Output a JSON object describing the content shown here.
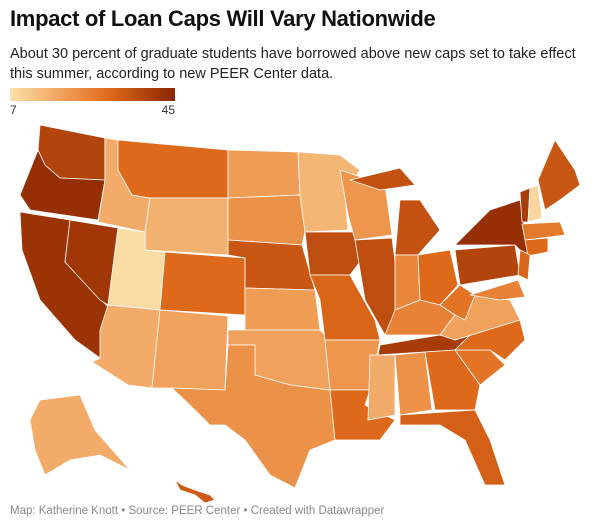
{
  "title": "Impact of Loan Caps Will Vary Nationwide",
  "subtitle": "About 30 percent of graduate students have borrowed above new caps set to take effect this summer, according to new PEER Center data.",
  "legend": {
    "min": "7",
    "max": "45",
    "min_color": "#fce0ab",
    "max_color": "#8b2500"
  },
  "footer": "Map: Katherine Knott • Source: PEER Center • Created with Datawrapper",
  "map_data": {
    "type": "choropleth",
    "unit": "percent",
    "range": [
      7,
      45
    ],
    "values": {
      "WA": 38,
      "OR": 43,
      "CA": 42,
      "NV": 41,
      "ID": 17,
      "MT": 30,
      "WY": 16,
      "UT": 8,
      "AZ": 17,
      "CO": 30,
      "NM": 19,
      "ND": 20,
      "SD": 22,
      "NE": 34,
      "KS": 20,
      "OK": 19,
      "TX": 22,
      "MN": 15,
      "IA": 36,
      "MO": 31,
      "AR": 21,
      "LA": 30,
      "WI": 21,
      "IL": 36,
      "MI": 35,
      "IN": 24,
      "OH": 30,
      "KY": 25,
      "TN": 40,
      "MS": 17,
      "AL": 22,
      "GA": 30,
      "FL": 32,
      "SC": 28,
      "NC": 30,
      "VA": 19,
      "WV": 28,
      "PA": 38,
      "NY": 43,
      "VT": 40,
      "NH": 9,
      "ME": 34,
      "MA": 27,
      "CT": 30,
      "NJ": 31,
      "MD": 25,
      "AK": 17,
      "HI": 33
    }
  }
}
